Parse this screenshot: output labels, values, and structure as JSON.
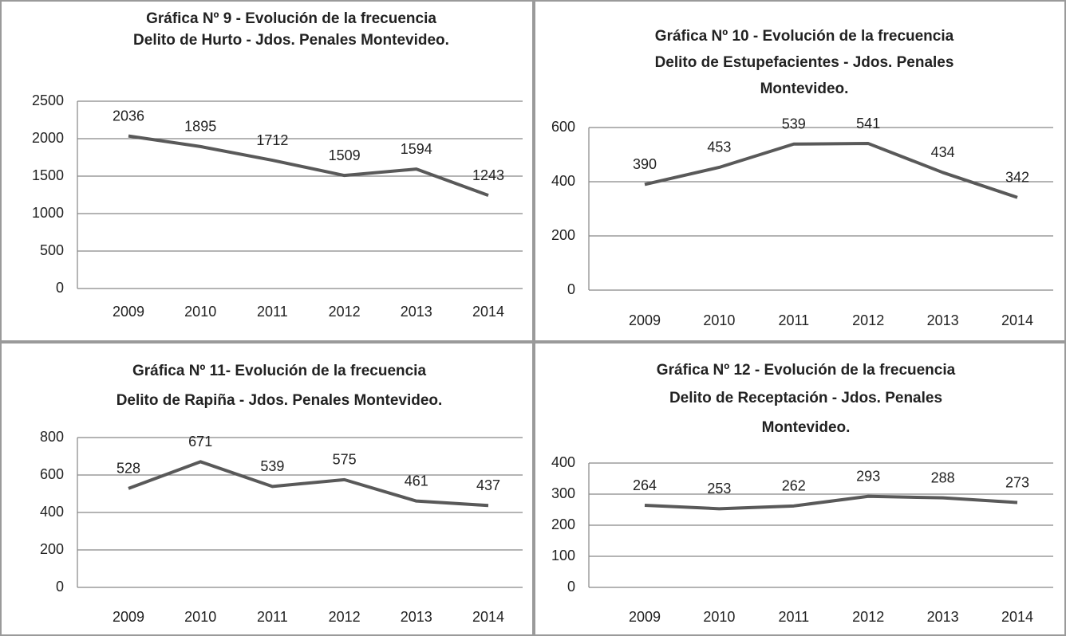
{
  "chart_data": [
    {
      "type": "line",
      "title": [
        "Gráfica Nº 9 - Evolución de la frecuencia",
        "Delito de Hurto - Jdos. Penales Montevideo."
      ],
      "categories": [
        "2009",
        "2010",
        "2011",
        "2012",
        "2013",
        "2014"
      ],
      "series": [
        {
          "name": null,
          "color": "#595959",
          "values": [
            2036,
            1895,
            1712,
            1509,
            1594,
            1243
          ]
        }
      ],
      "ylim": [
        0,
        2500
      ],
      "yticks": [
        0,
        500,
        1000,
        1500,
        2000,
        2500
      ],
      "grid": true
    },
    {
      "type": "line",
      "title": [
        "Gráfica Nº 10 - Evolución de la frecuencia",
        "Delito de Estupefacientes - Jdos. Penales",
        "Montevideo."
      ],
      "categories": [
        "2009",
        "2010",
        "2011",
        "2012",
        "2013",
        "2014"
      ],
      "series": [
        {
          "name": null,
          "color": "#595959",
          "values": [
            390,
            453,
            539,
            541,
            434,
            342
          ]
        }
      ],
      "ylim": [
        0,
        600
      ],
      "yticks": [
        0,
        200,
        400,
        600
      ],
      "grid": true
    },
    {
      "type": "line",
      "title": [
        "Gráfica Nº  11- Evolución de la frecuencia",
        "Delito de Rapiña - Jdos. Penales Montevideo."
      ],
      "categories": [
        "2009",
        "2010",
        "2011",
        "2012",
        "2013",
        "2014"
      ],
      "series": [
        {
          "name": null,
          "color": "#595959",
          "values": [
            528,
            671,
            539,
            575,
            461,
            437
          ]
        }
      ],
      "ylim": [
        0,
        800
      ],
      "yticks": [
        0,
        200,
        400,
        600,
        800
      ],
      "grid": true
    },
    {
      "type": "line",
      "title": [
        "Gráfica Nº 12 - Evolución de la frecuencia",
        "Delito de Receptación - Jdos. Penales",
        "Montevideo."
      ],
      "categories": [
        "2009",
        "2010",
        "2011",
        "2012",
        "2013",
        "2014"
      ],
      "series": [
        {
          "name": null,
          "color": "#595959",
          "values": [
            264,
            253,
            262,
            293,
            288,
            273
          ]
        }
      ],
      "ylim": [
        0,
        400
      ],
      "yticks": [
        0,
        100,
        200,
        300,
        400
      ],
      "grid": true
    }
  ]
}
